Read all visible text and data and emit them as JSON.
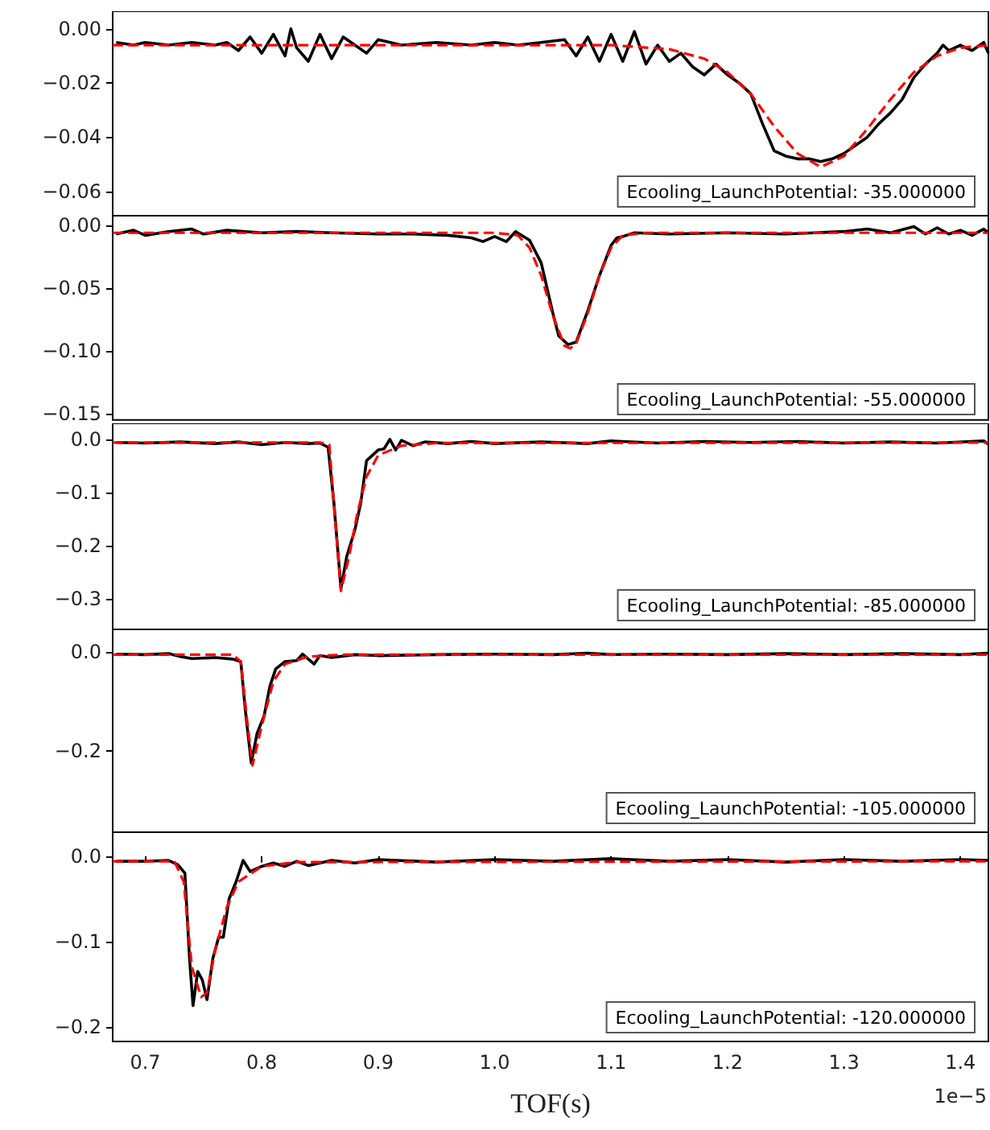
{
  "chart_data": [
    {
      "type": "line",
      "xlim": [
        0.672,
        1.424
      ],
      "ylim": [
        -0.069,
        0.0065
      ],
      "tick_labels": "y",
      "yticks": [
        {
          "value": 0,
          "label": "0.00"
        },
        {
          "value": -0.02,
          "label": "−0.02"
        },
        {
          "value": -0.04,
          "label": "−0.04"
        },
        {
          "value": -0.06,
          "label": "−0.06"
        }
      ],
      "annotations": [
        "Ecooling_LaunchPotential: -35.000000"
      ],
      "series": [
        {
          "color": "#000000",
          "line_style": "solid",
          "x": [
            0.675,
            0.69,
            0.7,
            0.72,
            0.74,
            0.76,
            0.77,
            0.78,
            0.79,
            0.8,
            0.81,
            0.82,
            0.825,
            0.83,
            0.84,
            0.85,
            0.86,
            0.87,
            0.88,
            0.89,
            0.9,
            0.92,
            0.95,
            0.98,
            1.0,
            1.02,
            1.04,
            1.06,
            1.07,
            1.08,
            1.09,
            1.1,
            1.11,
            1.12,
            1.13,
            1.14,
            1.15,
            1.16,
            1.17,
            1.18,
            1.19,
            1.2,
            1.21,
            1.22,
            1.23,
            1.24,
            1.25,
            1.26,
            1.27,
            1.28,
            1.29,
            1.3,
            1.31,
            1.32,
            1.33,
            1.34,
            1.35,
            1.36,
            1.37,
            1.38,
            1.385,
            1.39,
            1.4,
            1.41,
            1.42,
            1.424
          ],
          "values": [
            -0.005,
            -0.006,
            -0.005,
            -0.006,
            -0.005,
            -0.006,
            -0.005,
            -0.008,
            -0.003,
            -0.009,
            -0.002,
            -0.01,
            0.0,
            -0.007,
            -0.012,
            -0.002,
            -0.011,
            -0.003,
            -0.006,
            -0.009,
            -0.004,
            -0.006,
            -0.005,
            -0.006,
            -0.005,
            -0.006,
            -0.005,
            -0.004,
            -0.01,
            -0.003,
            -0.012,
            -0.002,
            -0.012,
            -0.001,
            -0.013,
            -0.006,
            -0.012,
            -0.009,
            -0.014,
            -0.017,
            -0.013,
            -0.017,
            -0.02,
            -0.024,
            -0.035,
            -0.045,
            -0.047,
            -0.048,
            -0.048,
            -0.049,
            -0.048,
            -0.046,
            -0.043,
            -0.04,
            -0.035,
            -0.031,
            -0.026,
            -0.018,
            -0.013,
            -0.009,
            -0.006,
            -0.008,
            -0.006,
            -0.008,
            -0.005,
            -0.009
          ]
        },
        {
          "color": "#ff0000",
          "line_style": "dashed",
          "x": [
            0.672,
            1.1,
            1.15,
            1.18,
            1.2,
            1.22,
            1.24,
            1.26,
            1.28,
            1.3,
            1.32,
            1.34,
            1.36,
            1.38,
            1.4,
            1.424
          ],
          "values": [
            -0.006,
            -0.006,
            -0.0075,
            -0.011,
            -0.016,
            -0.024,
            -0.036,
            -0.046,
            -0.051,
            -0.047,
            -0.037,
            -0.026,
            -0.016,
            -0.01,
            -0.007,
            -0.006
          ]
        }
      ]
    },
    {
      "type": "line",
      "xlim": [
        0.672,
        1.424
      ],
      "ylim": [
        -0.155,
        0.0076
      ],
      "tick_labels": "y",
      "yticks": [
        {
          "value": 0,
          "label": "0.00"
        },
        {
          "value": -0.05,
          "label": "−0.05"
        },
        {
          "value": -0.1,
          "label": "−0.10"
        },
        {
          "value": -0.15,
          "label": "−0.15"
        }
      ],
      "annotations": [
        "Ecooling_LaunchPotential: -55.000000"
      ],
      "series": [
        {
          "color": "#000000",
          "line_style": "solid",
          "x": [
            0.675,
            0.69,
            0.7,
            0.72,
            0.74,
            0.75,
            0.77,
            0.8,
            0.83,
            0.86,
            0.9,
            0.93,
            0.96,
            0.98,
            0.99,
            1.0,
            1.01,
            1.018,
            1.03,
            1.04,
            1.05,
            1.055,
            1.063,
            1.07,
            1.08,
            1.09,
            1.1,
            1.105,
            1.11,
            1.12,
            1.15,
            1.2,
            1.25,
            1.3,
            1.32,
            1.34,
            1.36,
            1.37,
            1.38,
            1.39,
            1.4,
            1.41,
            1.42,
            1.424
          ],
          "values": [
            -0.007,
            -0.004,
            -0.008,
            -0.005,
            -0.003,
            -0.007,
            -0.004,
            -0.006,
            -0.005,
            -0.006,
            -0.007,
            -0.007,
            -0.008,
            -0.01,
            -0.013,
            -0.009,
            -0.013,
            -0.005,
            -0.012,
            -0.03,
            -0.07,
            -0.088,
            -0.095,
            -0.093,
            -0.068,
            -0.04,
            -0.016,
            -0.01,
            -0.009,
            -0.006,
            -0.007,
            -0.006,
            -0.007,
            -0.005,
            -0.003,
            -0.006,
            -0.001,
            -0.007,
            -0.002,
            -0.007,
            -0.004,
            -0.008,
            -0.003,
            -0.006
          ]
        },
        {
          "color": "#ff0000",
          "line_style": "dashed",
          "x": [
            0.672,
            1.0,
            1.02,
            1.03,
            1.04,
            1.05,
            1.06,
            1.065,
            1.07,
            1.08,
            1.09,
            1.1,
            1.11,
            1.13,
            1.424
          ],
          "values": [
            -0.006,
            -0.006,
            -0.008,
            -0.018,
            -0.04,
            -0.072,
            -0.096,
            -0.098,
            -0.094,
            -0.07,
            -0.04,
            -0.018,
            -0.008,
            -0.006,
            -0.006
          ]
        }
      ]
    },
    {
      "type": "line",
      "xlim": [
        0.672,
        1.424
      ],
      "ylim": [
        -0.357,
        0.03
      ],
      "tick_labels": "y",
      "yticks": [
        {
          "value": 0,
          "label": "0.0"
        },
        {
          "value": -0.1,
          "label": "−0.1"
        },
        {
          "value": -0.2,
          "label": "−0.2"
        },
        {
          "value": -0.3,
          "label": "−0.3"
        }
      ],
      "annotations": [
        "Ecooling_LaunchPotential: -85.000000"
      ],
      "series": [
        {
          "color": "#000000",
          "line_style": "solid",
          "x": [
            0.675,
            0.7,
            0.73,
            0.76,
            0.78,
            0.8,
            0.82,
            0.84,
            0.85,
            0.857,
            0.862,
            0.868,
            0.873,
            0.88,
            0.885,
            0.89,
            0.9,
            0.905,
            0.91,
            0.915,
            0.92,
            0.93,
            0.94,
            0.96,
            0.98,
            1.0,
            1.04,
            1.08,
            1.1,
            1.14,
            1.18,
            1.22,
            1.26,
            1.3,
            1.34,
            1.38,
            1.42,
            1.424
          ],
          "values": [
            -0.006,
            -0.007,
            -0.005,
            -0.008,
            -0.005,
            -0.01,
            -0.006,
            -0.008,
            -0.007,
            -0.015,
            -0.12,
            -0.28,
            -0.22,
            -0.17,
            -0.12,
            -0.04,
            -0.02,
            -0.018,
            0.0,
            -0.02,
            -0.002,
            -0.012,
            -0.005,
            -0.008,
            -0.004,
            -0.008,
            -0.005,
            -0.008,
            -0.003,
            -0.007,
            -0.004,
            -0.006,
            -0.004,
            -0.007,
            -0.005,
            -0.007,
            -0.003,
            -0.009
          ]
        },
        {
          "color": "#ff0000",
          "line_style": "dashed",
          "x": [
            0.672,
            0.85,
            0.858,
            0.863,
            0.868,
            0.875,
            0.882,
            0.89,
            0.9,
            0.92,
            0.95,
            1.424
          ],
          "values": [
            -0.006,
            -0.006,
            -0.01,
            -0.15,
            -0.285,
            -0.22,
            -0.14,
            -0.07,
            -0.03,
            -0.012,
            -0.007,
            -0.006
          ]
        }
      ]
    },
    {
      "type": "line",
      "xlim": [
        0.672,
        1.424
      ],
      "ylim": [
        -0.365,
        0.045
      ],
      "tick_labels": "y",
      "yticks": [
        {
          "value": 0,
          "label": "0.0"
        },
        {
          "value": -0.2,
          "label": "−0.2"
        }
      ],
      "annotations": [
        "Ecooling_LaunchPotential: -105.000000"
      ],
      "series": [
        {
          "color": "#000000",
          "line_style": "solid",
          "x": [
            0.675,
            0.7,
            0.72,
            0.73,
            0.74,
            0.76,
            0.775,
            0.782,
            0.786,
            0.791,
            0.796,
            0.802,
            0.807,
            0.812,
            0.82,
            0.83,
            0.835,
            0.84,
            0.845,
            0.85,
            0.86,
            0.88,
            0.9,
            0.95,
            1.0,
            1.05,
            1.08,
            1.1,
            1.15,
            1.2,
            1.25,
            1.3,
            1.35,
            1.4,
            1.424
          ],
          "values": [
            -0.005,
            -0.006,
            -0.004,
            -0.01,
            -0.014,
            -0.012,
            -0.015,
            -0.02,
            -0.12,
            -0.225,
            -0.165,
            -0.13,
            -0.07,
            -0.035,
            -0.02,
            -0.018,
            -0.005,
            -0.015,
            -0.025,
            -0.008,
            -0.012,
            -0.006,
            -0.008,
            -0.006,
            -0.005,
            -0.006,
            -0.003,
            -0.006,
            -0.005,
            -0.006,
            -0.004,
            -0.006,
            -0.004,
            -0.006,
            -0.003
          ]
        },
        {
          "color": "#ff0000",
          "line_style": "dashed",
          "x": [
            0.672,
            0.775,
            0.782,
            0.787,
            0.792,
            0.8,
            0.81,
            0.82,
            0.84,
            0.87,
            1.424
          ],
          "values": [
            -0.006,
            -0.006,
            -0.02,
            -0.13,
            -0.23,
            -0.15,
            -0.06,
            -0.025,
            -0.01,
            -0.006,
            -0.006
          ]
        }
      ]
    },
    {
      "type": "line",
      "xlim": [
        0.672,
        1.424
      ],
      "ylim": [
        -0.217,
        0.028
      ],
      "xlabel": "TOF(s)",
      "xticks": [
        0.7,
        0.8,
        0.9,
        {
          "value": 1,
          "label": "1.0"
        },
        1.1,
        1.2,
        1.3,
        1.4
      ],
      "yticks": [
        {
          "value": 0,
          "label": "0.0"
        },
        {
          "value": -0.1,
          "label": "−0.1"
        },
        {
          "value": -0.2,
          "label": "−0.2"
        }
      ],
      "annotations": [
        "Ecooling_LaunchPotential: -120.000000",
        "1e−5"
      ],
      "series": [
        {
          "color": "#000000",
          "line_style": "solid",
          "x": [
            0.675,
            0.7,
            0.72,
            0.728,
            0.734,
            0.738,
            0.741,
            0.745,
            0.749,
            0.753,
            0.758,
            0.763,
            0.767,
            0.772,
            0.778,
            0.784,
            0.79,
            0.8,
            0.81,
            0.82,
            0.83,
            0.84,
            0.86,
            0.88,
            0.9,
            0.95,
            1.0,
            1.05,
            1.1,
            1.15,
            1.2,
            1.25,
            1.3,
            1.35,
            1.4,
            1.424
          ],
          "values": [
            -0.006,
            -0.006,
            -0.005,
            -0.01,
            -0.02,
            -0.12,
            -0.175,
            -0.135,
            -0.145,
            -0.168,
            -0.12,
            -0.095,
            -0.095,
            -0.05,
            -0.03,
            -0.005,
            -0.018,
            -0.012,
            -0.008,
            -0.012,
            -0.006,
            -0.011,
            -0.005,
            -0.008,
            -0.004,
            -0.007,
            -0.004,
            -0.006,
            -0.003,
            -0.006,
            -0.004,
            -0.007,
            -0.004,
            -0.006,
            -0.004,
            -0.005
          ]
        },
        {
          "color": "#ff0000",
          "line_style": "dashed",
          "x": [
            0.672,
            0.725,
            0.733,
            0.74,
            0.748,
            0.753,
            0.76,
            0.77,
            0.78,
            0.8,
            0.83,
            1.424
          ],
          "values": [
            -0.006,
            -0.006,
            -0.03,
            -0.13,
            -0.165,
            -0.16,
            -0.11,
            -0.06,
            -0.03,
            -0.012,
            -0.007,
            -0.006
          ]
        }
      ]
    }
  ]
}
